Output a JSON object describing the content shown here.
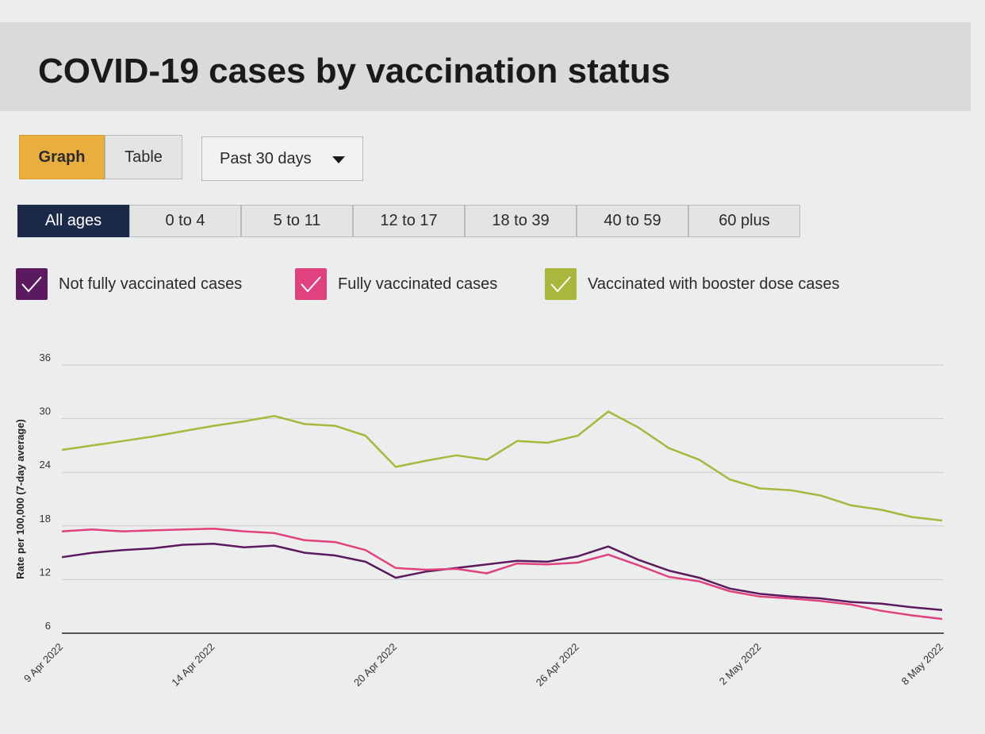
{
  "header": {
    "title": "COVID-19 cases by vaccination status"
  },
  "view_toggle": {
    "graph_label": "Graph",
    "table_label": "Table",
    "selected": "Graph"
  },
  "range_select": {
    "value": "Past 30 days",
    "icon": "chevron-down-icon"
  },
  "age_tabs": [
    {
      "label": "All ages",
      "active": true
    },
    {
      "label": "0 to 4",
      "active": false
    },
    {
      "label": "5 to 11",
      "active": false
    },
    {
      "label": "12 to 17",
      "active": false
    },
    {
      "label": "18 to 39",
      "active": false
    },
    {
      "label": "40 to 59",
      "active": false
    },
    {
      "label": "60 plus",
      "active": false
    }
  ],
  "legend": [
    {
      "label": "Not fully vaccinated cases",
      "color": "#5b1a5e",
      "checked": true,
      "icon": "checkmark-icon"
    },
    {
      "label": "Fully vaccinated cases",
      "color": "#e0417f",
      "checked": true,
      "icon": "checkmark-icon"
    },
    {
      "label": "Vaccinated with booster dose cases",
      "color": "#a9b73c",
      "checked": true,
      "icon": "checkmark-icon"
    }
  ],
  "chart_data": {
    "type": "line",
    "ylabel": "Rate per 100,000 (7-day average)",
    "xlabel": "",
    "ylim": [
      6,
      36
    ],
    "y_ticks": [
      6,
      12,
      18,
      24,
      30,
      36
    ],
    "x_tick_labels": [
      "9 Apr 2022",
      "14 Apr 2022",
      "20 Apr 2022",
      "26 Apr 2022",
      "2 May 2022",
      "8 May 2022"
    ],
    "x": [
      "2022-04-09",
      "2022-04-10",
      "2022-04-11",
      "2022-04-12",
      "2022-04-13",
      "2022-04-14",
      "2022-04-15",
      "2022-04-16",
      "2022-04-17",
      "2022-04-18",
      "2022-04-19",
      "2022-04-20",
      "2022-04-21",
      "2022-04-22",
      "2022-04-23",
      "2022-04-24",
      "2022-04-25",
      "2022-04-26",
      "2022-04-27",
      "2022-04-28",
      "2022-04-29",
      "2022-04-30",
      "2022-05-01",
      "2022-05-02",
      "2022-05-03",
      "2022-05-04",
      "2022-05-05",
      "2022-05-06",
      "2022-05-07",
      "2022-05-08"
    ],
    "series": [
      {
        "name": "Not fully vaccinated cases",
        "color": "#5b1a5e",
        "values": [
          14.5,
          15.0,
          15.3,
          15.5,
          15.9,
          16.0,
          15.6,
          15.8,
          15.0,
          14.7,
          14.0,
          12.2,
          12.9,
          13.3,
          13.7,
          14.1,
          14.0,
          14.6,
          15.7,
          14.2,
          13.0,
          12.2,
          11.0,
          10.4,
          10.1,
          9.9,
          9.5,
          9.3,
          8.9,
          8.6
        ]
      },
      {
        "name": "Fully vaccinated cases",
        "color": "#e0417f",
        "values": [
          17.4,
          17.6,
          17.4,
          17.5,
          17.6,
          17.7,
          17.4,
          17.2,
          16.4,
          16.2,
          15.3,
          13.3,
          13.1,
          13.2,
          12.7,
          13.8,
          13.7,
          13.9,
          14.8,
          13.6,
          12.3,
          11.8,
          10.7,
          10.1,
          9.9,
          9.6,
          9.2,
          8.5,
          8.0,
          7.6
        ]
      },
      {
        "name": "Vaccinated with booster dose cases",
        "color": "#a9b73c",
        "values": [
          26.5,
          27.0,
          27.5,
          28.0,
          28.6,
          29.2,
          29.7,
          30.3,
          29.4,
          29.2,
          28.1,
          24.6,
          25.3,
          25.9,
          25.4,
          27.5,
          27.3,
          28.1,
          30.8,
          29.0,
          26.7,
          25.4,
          23.2,
          22.2,
          22.0,
          21.4,
          20.3,
          19.8,
          19.0,
          18.6
        ]
      }
    ],
    "grid": true,
    "legend_position": "top-left"
  }
}
